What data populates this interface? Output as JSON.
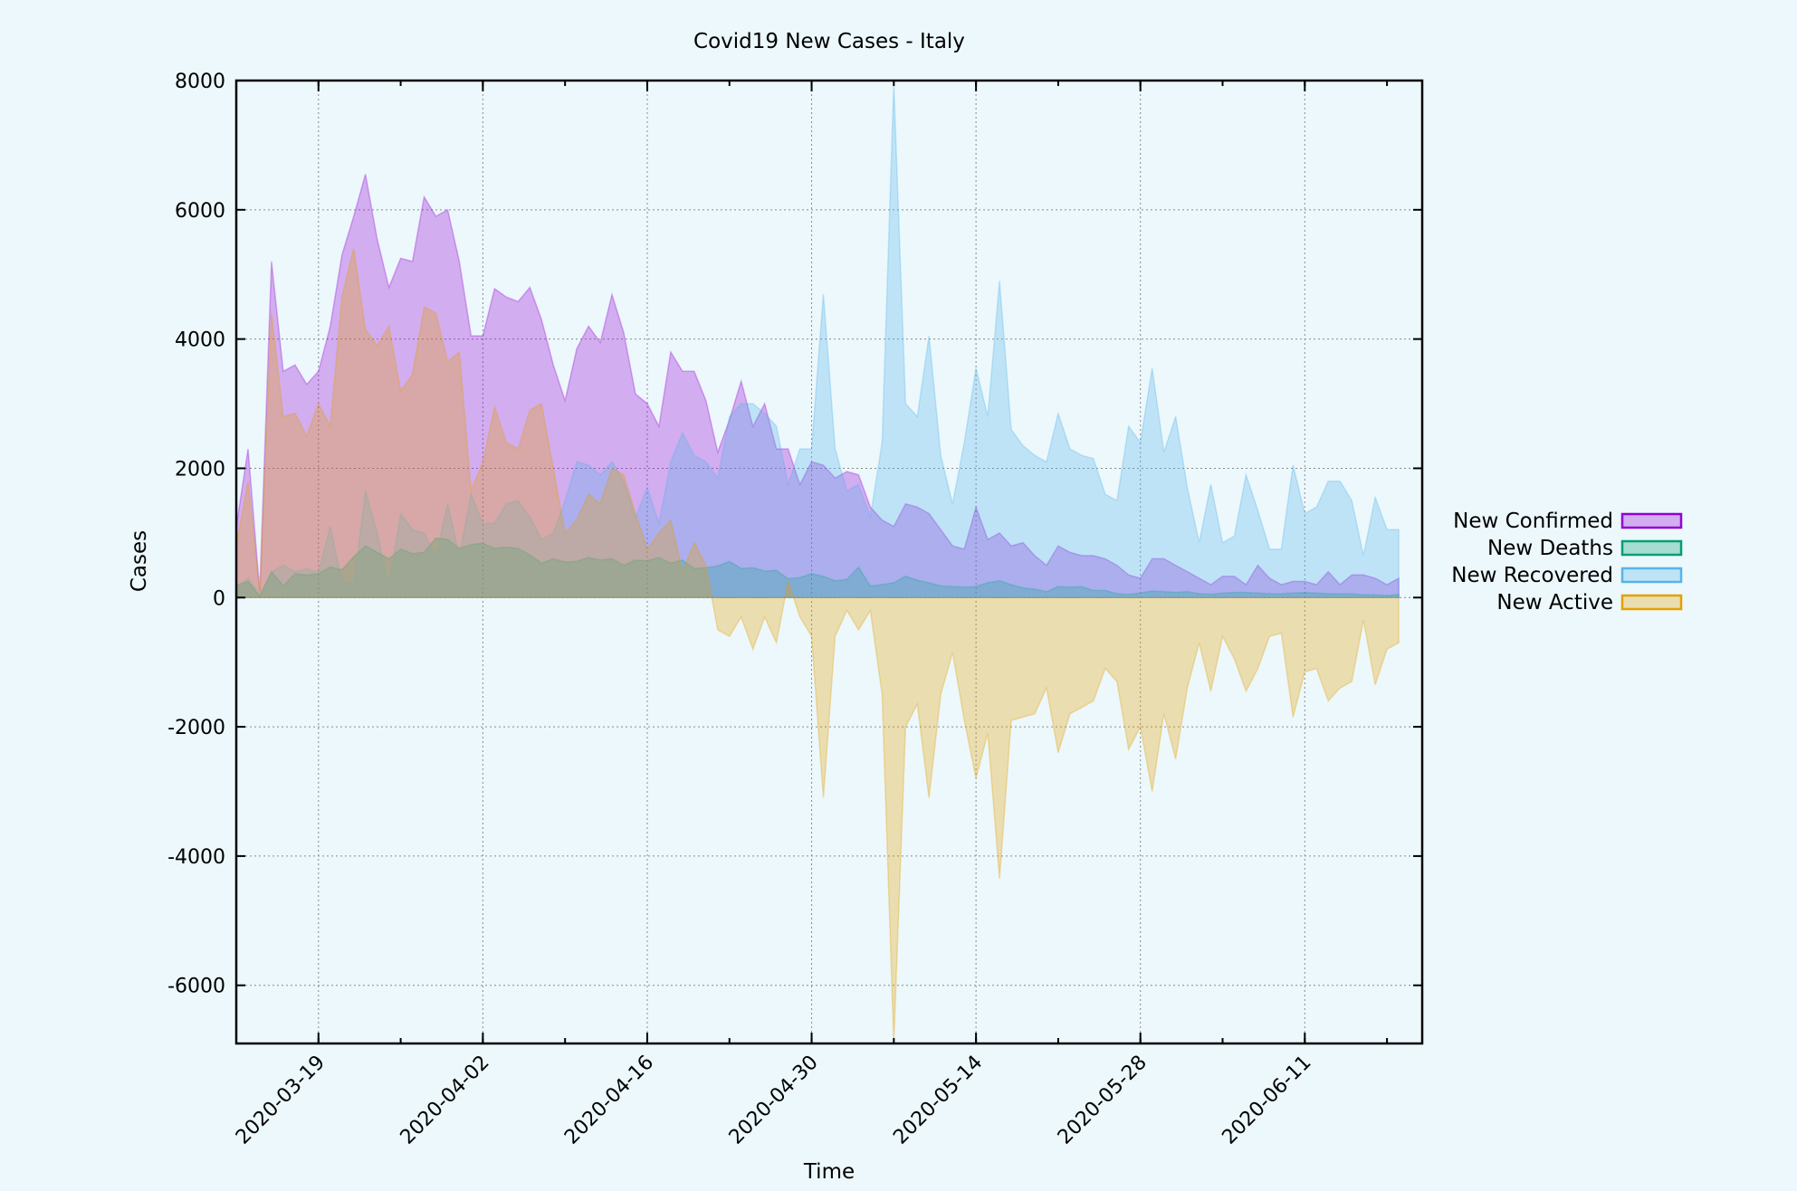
{
  "chart_data": {
    "type": "area",
    "title": "Covid19 New Cases - Italy",
    "xlabel": "Time",
    "ylabel": "Cases",
    "ylim": [
      -6900,
      8000
    ],
    "xlim": [
      "2020-03-12",
      "2020-06-21"
    ],
    "y_ticks": [
      -6000,
      -4000,
      -2000,
      0,
      2000,
      4000,
      6000,
      8000
    ],
    "x_ticks": [
      "2020-03-19",
      "2020-04-02",
      "2020-04-16",
      "2020-04-30",
      "2020-05-14",
      "2020-05-28",
      "2020-06-11"
    ],
    "grid": true,
    "legend_position": "right",
    "x_start": "2020-03-12",
    "series": [
      {
        "name": "New Confirmed",
        "color": "#9400d3",
        "values": [
          1100,
          2300,
          100,
          5200,
          3500,
          3600,
          3300,
          3500,
          4200,
          5300,
          5900,
          6550,
          5550,
          4800,
          5250,
          5200,
          6200,
          5900,
          6000,
          5200,
          4050,
          4050,
          4780,
          4650,
          4580,
          4800,
          4300,
          3600,
          3050,
          3850,
          4200,
          3950,
          4690,
          4100,
          3150,
          3000,
          2650,
          3800,
          3500,
          3500,
          3050,
          2250,
          2750,
          3350,
          2650,
          3000,
          2300,
          2300,
          1750,
          2100,
          2050,
          1850,
          1950,
          1900,
          1400,
          1200,
          1100,
          1450,
          1400,
          1300,
          1050,
          800,
          750,
          1400,
          900,
          1000,
          800,
          850,
          650,
          500,
          800,
          700,
          650,
          650,
          600,
          500,
          350,
          300,
          600,
          600,
          500,
          400,
          300,
          200,
          330,
          330,
          200,
          500,
          300,
          200,
          250,
          250,
          200,
          400,
          200,
          350,
          350,
          300,
          200,
          300
        ]
      },
      {
        "name": "New Deaths",
        "color": "#009e73",
        "values": [
          190,
          250,
          20,
          400,
          180,
          370,
          350,
          370,
          475,
          430,
          630,
          800,
          700,
          600,
          750,
          680,
          700,
          920,
          900,
          760,
          820,
          840,
          760,
          780,
          760,
          660,
          530,
          600,
          550,
          560,
          620,
          580,
          600,
          500,
          580,
          570,
          620,
          530,
          580,
          450,
          460,
          490,
          560,
          450,
          460,
          410,
          420,
          290,
          310,
          370,
          330,
          260,
          280,
          470,
          180,
          200,
          230,
          330,
          270,
          230,
          180,
          170,
          160,
          170,
          230,
          260,
          200,
          150,
          130,
          90,
          170,
          160,
          170,
          110,
          110,
          60,
          50,
          70,
          100,
          90,
          80,
          90,
          60,
          50,
          70,
          80,
          80,
          70,
          60,
          60,
          70,
          80,
          70,
          60,
          60,
          60,
          40,
          40,
          30,
          50
        ]
      },
      {
        "name": "New Recovered",
        "color": "#56b4e9",
        "values": [
          150,
          300,
          50,
          400,
          500,
          400,
          450,
          400,
          1100,
          250,
          200,
          1650,
          1000,
          200,
          1300,
          1050,
          1000,
          650,
          1450,
          650,
          1600,
          1150,
          1150,
          1450,
          1500,
          1250,
          900,
          1000,
          1500,
          2100,
          2050,
          1900,
          2100,
          1800,
          1250,
          1700,
          1150,
          2100,
          2550,
          2200,
          2100,
          1850,
          2800,
          3000,
          3000,
          2850,
          2650,
          1750,
          2300,
          2300,
          4700,
          2300,
          1650,
          1750,
          1250,
          2400,
          7950,
          3000,
          2800,
          4050,
          2200,
          1450,
          2400,
          3550,
          2800,
          4900,
          2600,
          2350,
          2200,
          2100,
          2850,
          2300,
          2200,
          2150,
          1600,
          1500,
          2650,
          2400,
          3550,
          2250,
          2800,
          1700,
          850,
          1750,
          850,
          950,
          1900,
          1350,
          750,
          750,
          2050,
          1300,
          1400,
          1800,
          1800,
          1500,
          650,
          1550,
          1050,
          1050
        ]
      },
      {
        "name": "New Active",
        "color": "#e69f00",
        "values": [
          800,
          1800,
          50,
          4400,
          2800,
          2850,
          2500,
          3000,
          2650,
          4650,
          5400,
          4150,
          3900,
          4200,
          3200,
          3450,
          4500,
          4400,
          3650,
          3800,
          1650,
          2100,
          2950,
          2400,
          2300,
          2900,
          3000,
          2000,
          1000,
          1200,
          1600,
          1450,
          2000,
          1900,
          1300,
          750,
          1000,
          1200,
          400,
          850,
          500,
          -500,
          -600,
          -300,
          -800,
          -300,
          -700,
          250,
          -300,
          -600,
          -3100,
          -600,
          -200,
          -500,
          -200,
          -1500,
          -6900,
          -2000,
          -1650,
          -3100,
          -1500,
          -850,
          -1900,
          -2800,
          -2100,
          -4350,
          -1900,
          -1850,
          -1800,
          -1400,
          -2400,
          -1800,
          -1700,
          -1600,
          -1100,
          -1300,
          -2350,
          -2000,
          -3000,
          -1800,
          -2500,
          -1400,
          -700,
          -1450,
          -600,
          -950,
          -1450,
          -1100,
          -600,
          -550,
          -1850,
          -1150,
          -1100,
          -1600,
          -1400,
          -1300,
          -350,
          -1350,
          -800,
          -700
        ]
      }
    ]
  }
}
